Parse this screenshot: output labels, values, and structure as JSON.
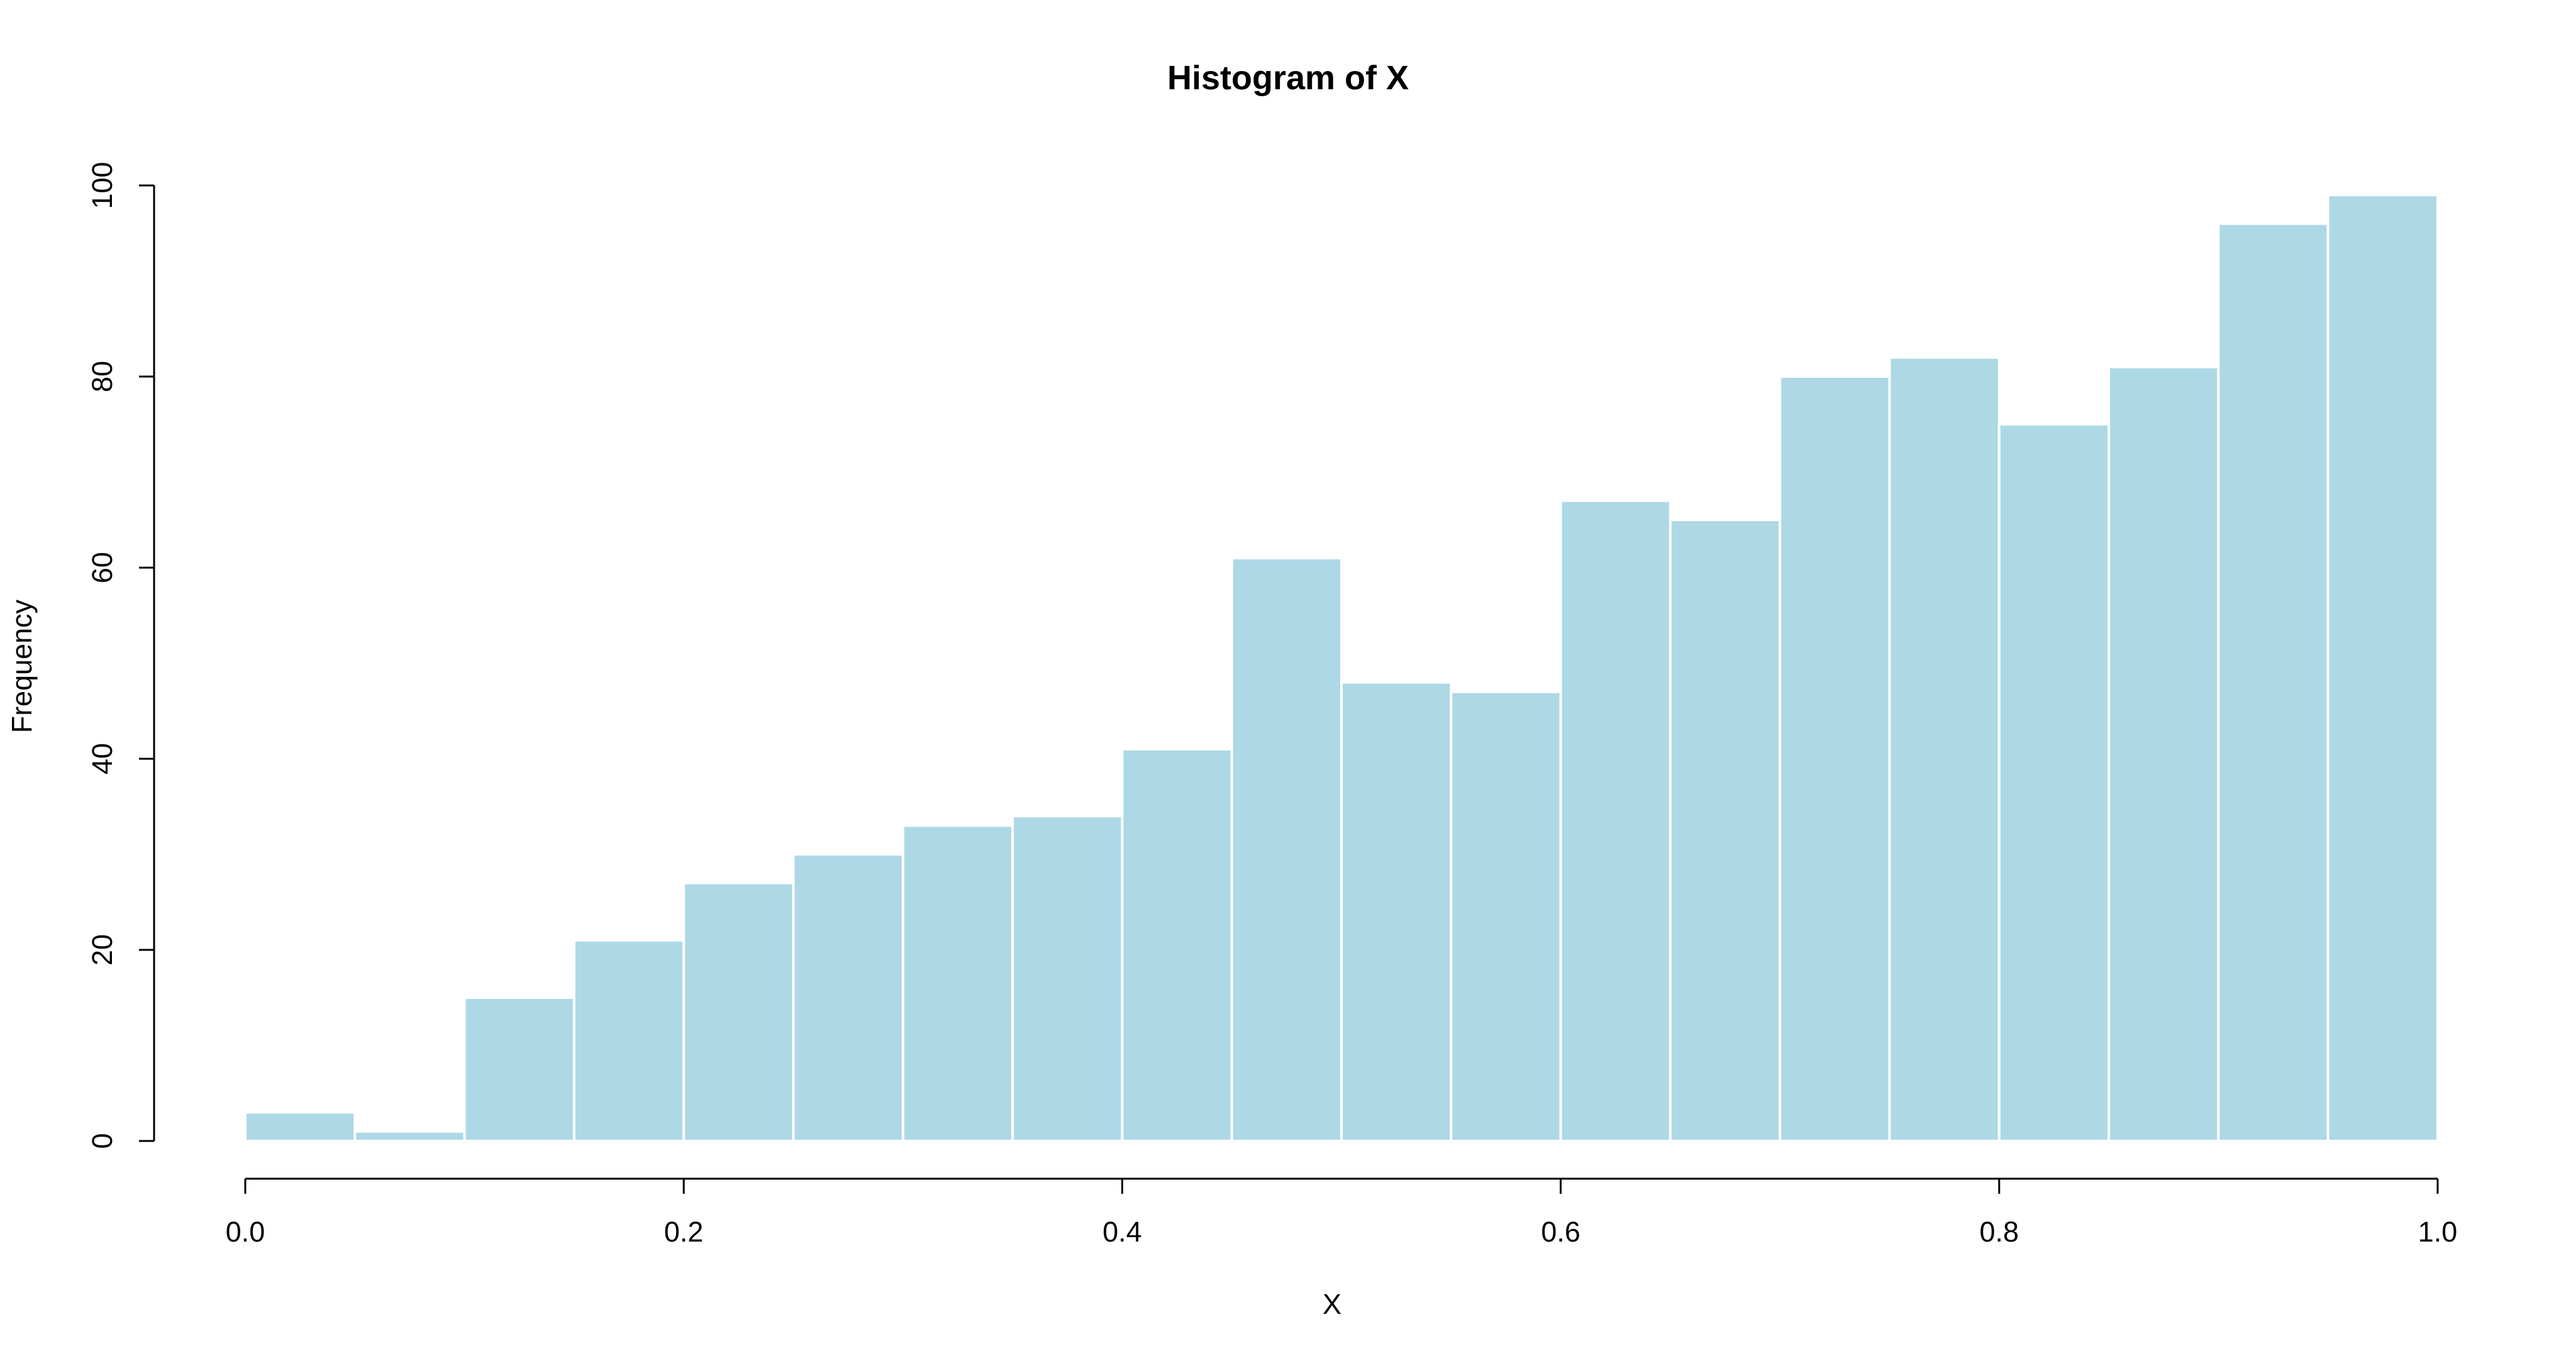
{
  "chart_data": {
    "type": "bar",
    "title": "Histogram of X",
    "xlabel": "X",
    "ylabel": "Frequency",
    "bin_edges": [
      0.0,
      0.05,
      0.1,
      0.15,
      0.2,
      0.25,
      0.3,
      0.35,
      0.4,
      0.45,
      0.5,
      0.55,
      0.6,
      0.65,
      0.7,
      0.75,
      0.8,
      0.85,
      0.9,
      0.95,
      1.0
    ],
    "values": [
      3,
      1,
      15,
      21,
      27,
      30,
      33,
      34,
      41,
      61,
      48,
      47,
      67,
      65,
      80,
      82,
      75,
      81,
      96,
      99
    ],
    "xlim": [
      0.0,
      1.0
    ],
    "ylim": [
      0,
      100
    ],
    "x_ticks": [
      "0.0",
      "0.2",
      "0.4",
      "0.6",
      "0.8",
      "1.0"
    ],
    "y_ticks": [
      "0",
      "20",
      "40",
      "60",
      "80",
      "100"
    ],
    "grid": false,
    "bar_color": "#ADD8E6",
    "bar_edge_color": "#FFFFFF"
  }
}
